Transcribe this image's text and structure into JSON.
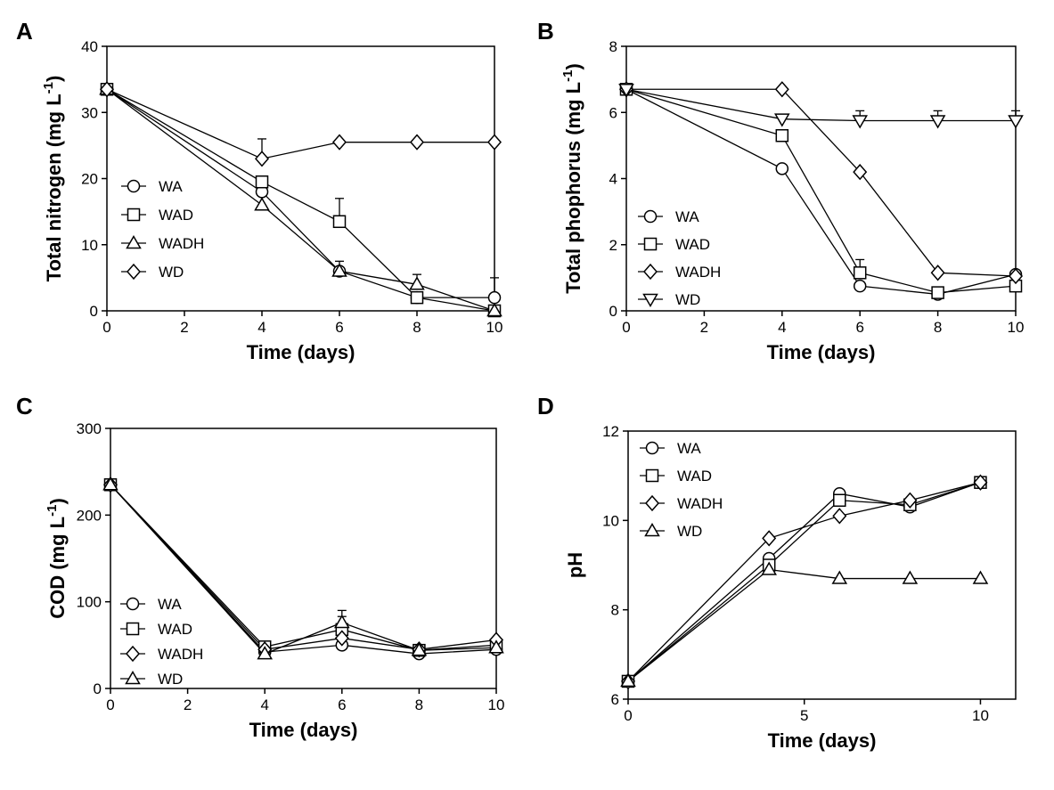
{
  "colors": {
    "ink": "#000000",
    "background": "#ffffff",
    "marker_fill": "#ffffff"
  },
  "chart_data": [
    {
      "panel": "A",
      "type": "line",
      "xlabel": "Time (days)",
      "ylabel": "Total nitrogen (mg L",
      "ylabel_sup": "-1",
      "ylabel_close": ")",
      "xlim": [
        0,
        10
      ],
      "ylim": [
        0,
        40
      ],
      "xticks": [
        "0",
        "2",
        "4",
        "6",
        "8",
        "10"
      ],
      "yticks": [
        "0",
        "10",
        "20",
        "30",
        "40"
      ],
      "legend_position": "left-middle",
      "x": [
        0,
        4,
        6,
        8,
        10
      ],
      "series": [
        {
          "name": "WA",
          "marker": "circle",
          "values": [
            33.5,
            18,
            6,
            2,
            2
          ],
          "errors": [
            0,
            0,
            0,
            0,
            3
          ]
        },
        {
          "name": "WAD",
          "marker": "square",
          "values": [
            33.5,
            19.5,
            13.5,
            2,
            0
          ],
          "errors": [
            0,
            0,
            3.5,
            0,
            0
          ]
        },
        {
          "name": "WADH",
          "marker": "triangle-up",
          "values": [
            33.5,
            16,
            6,
            4,
            0
          ],
          "errors": [
            0,
            0,
            1.5,
            1.5,
            0
          ]
        },
        {
          "name": "WD",
          "marker": "diamond",
          "values": [
            33.5,
            23,
            25.5,
            25.5,
            25.5
          ],
          "errors": [
            0,
            3,
            0,
            0,
            0
          ]
        }
      ]
    },
    {
      "panel": "B",
      "type": "line",
      "xlabel": "Time (days)",
      "ylabel": "Total phophorus (mg L",
      "ylabel_sup": "-1",
      "ylabel_close": ")",
      "xlim": [
        0,
        10
      ],
      "ylim": [
        0,
        8
      ],
      "xticks": [
        "0",
        "2",
        "4",
        "6",
        "8",
        "10"
      ],
      "yticks": [
        "0",
        "2",
        "4",
        "6",
        "8"
      ],
      "legend_position": "left-bottom",
      "x": [
        0,
        4,
        6,
        8,
        10
      ],
      "series": [
        {
          "name": "WA",
          "marker": "circle",
          "values": [
            6.7,
            4.3,
            0.75,
            0.5,
            1.1
          ],
          "errors": [
            0,
            0,
            0,
            0,
            0
          ]
        },
        {
          "name": "WAD",
          "marker": "square",
          "values": [
            6.7,
            5.3,
            1.15,
            0.55,
            0.75
          ],
          "errors": [
            0,
            0,
            0.4,
            0,
            0
          ]
        },
        {
          "name": "WADH",
          "marker": "diamond",
          "values": [
            6.7,
            6.7,
            4.2,
            1.15,
            1.05
          ],
          "errors": [
            0,
            0,
            0,
            0,
            0
          ]
        },
        {
          "name": "WD",
          "marker": "triangle-down",
          "values": [
            6.7,
            5.8,
            5.75,
            5.75,
            5.75
          ],
          "errors": [
            0,
            0,
            0.3,
            0.3,
            0.3
          ]
        }
      ]
    },
    {
      "panel": "C",
      "type": "line",
      "xlabel": "Time (days)",
      "ylabel": "COD (mg L",
      "ylabel_sup": "-1",
      "ylabel_close": ")",
      "xlim": [
        0,
        10
      ],
      "ylim": [
        0,
        300
      ],
      "xticks": [
        "0",
        "2",
        "4",
        "6",
        "8",
        "10"
      ],
      "yticks": [
        "0",
        "100",
        "200",
        "300"
      ],
      "legend_position": "left-bottom",
      "x": [
        0,
        4,
        6,
        8,
        10
      ],
      "series": [
        {
          "name": "WA",
          "marker": "circle",
          "values": [
            235,
            42,
            50,
            40,
            45
          ],
          "errors": [
            0,
            0,
            0,
            0,
            0
          ]
        },
        {
          "name": "WAD",
          "marker": "square",
          "values": [
            235,
            48,
            68,
            44,
            50
          ],
          "errors": [
            0,
            0,
            15,
            0,
            0
          ]
        },
        {
          "name": "WADH",
          "marker": "diamond",
          "values": [
            235,
            45,
            58,
            45,
            56
          ],
          "errors": [
            0,
            0,
            0,
            0,
            0
          ]
        },
        {
          "name": "WD",
          "marker": "triangle-up",
          "values": [
            235,
            40,
            76,
            44,
            47
          ],
          "errors": [
            0,
            0,
            14,
            0,
            0
          ]
        }
      ]
    },
    {
      "panel": "D",
      "type": "line",
      "xlabel": "Time (days)",
      "ylabel": "pH",
      "ylabel_sup": "",
      "ylabel_close": "",
      "xlim": [
        0,
        11
      ],
      "ylim": [
        6,
        12
      ],
      "xticks": [
        "0",
        "5",
        "10"
      ],
      "xtick_values": [
        0,
        5,
        10
      ],
      "yticks": [
        "6",
        "8",
        "10",
        "12"
      ],
      "legend_position": "top-left",
      "x": [
        0,
        4,
        6,
        8,
        10
      ],
      "series": [
        {
          "name": "WA",
          "marker": "circle",
          "values": [
            6.4,
            9.15,
            10.6,
            10.3,
            10.85
          ],
          "errors": [
            0,
            0,
            0,
            0,
            0
          ]
        },
        {
          "name": "WAD",
          "marker": "square",
          "values": [
            6.4,
            9.0,
            10.45,
            10.35,
            10.85
          ],
          "errors": [
            0,
            0,
            0,
            0,
            0
          ]
        },
        {
          "name": "WADH",
          "marker": "diamond",
          "values": [
            6.4,
            9.6,
            10.1,
            10.45,
            10.85
          ],
          "errors": [
            0,
            0,
            0,
            0,
            0
          ]
        },
        {
          "name": "WD",
          "marker": "triangle-up",
          "values": [
            6.4,
            8.9,
            8.7,
            8.7,
            8.7
          ],
          "errors": [
            0,
            0,
            0,
            0,
            0
          ]
        }
      ]
    }
  ]
}
